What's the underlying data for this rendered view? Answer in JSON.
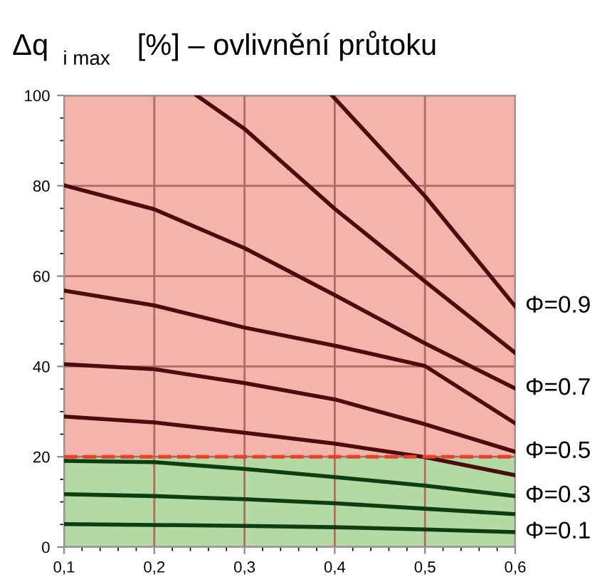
{
  "chart_data": {
    "type": "line",
    "title": "Δq$_{i max}$ [%] – ovlivnění průtoku",
    "xlim": [
      0.1,
      0.6
    ],
    "ylim": [
      0,
      100
    ],
    "xticks": [
      {
        "value": 0.1,
        "label": "0,1"
      },
      {
        "value": 0.2,
        "label": "0,2"
      },
      {
        "value": 0.3,
        "label": "0,3"
      },
      {
        "value": 0.4,
        "label": "0,4"
      },
      {
        "value": 0.5,
        "label": "0,5"
      },
      {
        "value": 0.6,
        "label": "0,6"
      }
    ],
    "yticks": [
      0,
      20,
      40,
      60,
      80,
      100
    ],
    "grid": true,
    "legend": false,
    "marker": "none",
    "line_style": "solid",
    "series": [
      {
        "name": "Φ=0.1",
        "color": "#0f3d12",
        "x": [
          0.1,
          0.2,
          0.3,
          0.4,
          0.5,
          0.6
        ],
        "values": [
          5.1,
          4.9,
          4.7,
          4.4,
          3.9,
          3.3
        ]
      },
      {
        "color": "#0f3d12",
        "x": [
          0.1,
          0.2,
          0.3,
          0.4,
          0.5,
          0.6
        ],
        "values": [
          11.7,
          11.3,
          10.6,
          9.7,
          8.5,
          7.3
        ]
      },
      {
        "name": "Φ=0.3",
        "color": "#0f3d12",
        "x": [
          0.1,
          0.2,
          0.3,
          0.4,
          0.5,
          0.6
        ],
        "values": [
          19.1,
          18.8,
          17.3,
          15.5,
          13.6,
          11.3
        ]
      },
      {
        "color": "#4a0c0c",
        "x": [
          0.1,
          0.2,
          0.3,
          0.4,
          0.5,
          0.6
        ],
        "values": [
          28.9,
          27.6,
          25.3,
          22.9,
          19.9,
          15.9
        ]
      },
      {
        "name": "Φ=0.5",
        "color": "#4a0c0c",
        "x": [
          0.1,
          0.2,
          0.3,
          0.4,
          0.5,
          0.6
        ],
        "values": [
          40.5,
          39.4,
          36.3,
          32.7,
          27.2,
          21.1
        ]
      },
      {
        "color": "#4a0c0c",
        "x": [
          0.1,
          0.2,
          0.3,
          0.4,
          0.5,
          0.6
        ],
        "values": [
          56.8,
          53.5,
          48.6,
          44.6,
          40.1,
          27.4
        ]
      },
      {
        "name": "Φ=0.7",
        "color": "#4a0c0c",
        "x": [
          0.1,
          0.2,
          0.3,
          0.4,
          0.5,
          0.6
        ],
        "values": [
          80.1,
          74.8,
          66.2,
          55.8,
          45.1,
          35.1
        ]
      },
      {
        "color": "#4a0c0c",
        "x": [
          0.247,
          0.3,
          0.4,
          0.5,
          0.6
        ],
        "values": [
          100,
          92.6,
          74.9,
          58.8,
          43.0
        ]
      },
      {
        "name": "Φ=0.9",
        "color": "#4a0c0c",
        "x": [
          0.397,
          0.45,
          0.5,
          0.55,
          0.6
        ],
        "values": [
          100,
          88.5,
          77.7,
          65.5,
          53.3
        ]
      }
    ],
    "bands": [
      {
        "axis": "y",
        "from": 20,
        "to": 100,
        "color": "#f4b3ab"
      },
      {
        "axis": "y",
        "from": 0,
        "to": 20,
        "color": "#b3daa3"
      }
    ],
    "ref_lines": [
      {
        "axis": "y",
        "value": 20,
        "color": "#e8402a",
        "line_style": "dashed"
      }
    ]
  }
}
